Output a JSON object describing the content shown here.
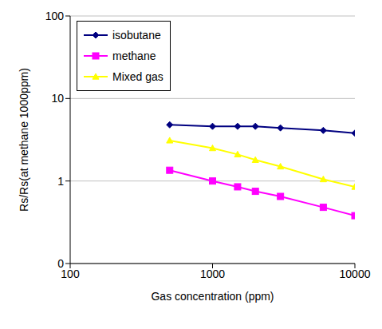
{
  "chart_data": {
    "type": "line",
    "xlabel": "Gas concentration (ppm)",
    "ylabel": "Rs/Rs(at methane 1000ppm)",
    "log": true,
    "grid": true,
    "legend": "upper left",
    "x": [
      500,
      1000,
      1500,
      2000,
      3000,
      6000,
      10000
    ],
    "xlim": [
      100,
      10000
    ],
    "xticks": [
      100,
      1000,
      10000
    ],
    "ylim": [
      0.1,
      100
    ],
    "yticks": [
      {
        "value": 0.1,
        "label": "0"
      },
      1,
      10,
      100
    ],
    "series": [
      {
        "name": "isobutane",
        "color": "#000080",
        "marker": "diamond",
        "values": [
          4.8,
          4.6,
          4.6,
          4.6,
          4.4,
          4.1,
          3.8
        ]
      },
      {
        "name": "methane",
        "color": "#ff00ff",
        "marker": "square",
        "values": [
          1.35,
          1.0,
          0.85,
          0.75,
          0.65,
          0.48,
          0.38
        ]
      },
      {
        "name": "Mixed gas",
        "color": "#ffff00",
        "marker": "triangle",
        "values": [
          3.1,
          2.5,
          2.1,
          1.8,
          1.5,
          1.05,
          0.85
        ]
      }
    ]
  }
}
